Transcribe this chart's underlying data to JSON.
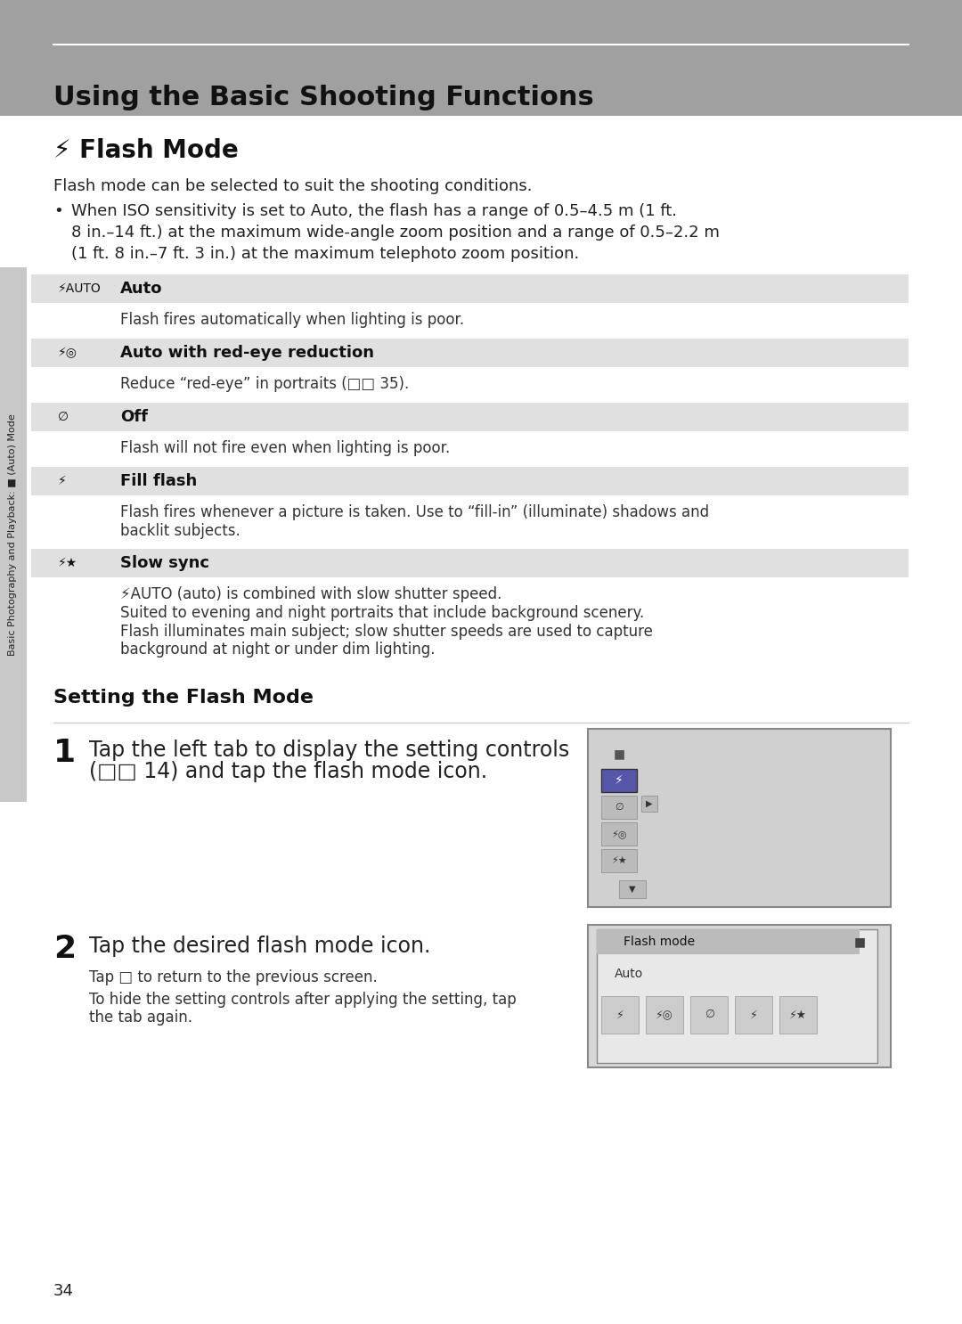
{
  "page_bg": "#ffffff",
  "header_bg": "#a0a0a0",
  "header_text": "Using the Basic Shooting Functions",
  "header_line_color": "#ffffff",
  "section_title": "⚡ Flash Mode",
  "intro_text": "Flash mode can be selected to suit the shooting conditions.",
  "bullet_text": "When ISO sensitivity is set to Auto, the flash has a range of 0.5–4.5 m (1 ft.\n8 in.–14 ft.) at the maximum wide-angle zoom position and a range of 0.5–2.2 m\n(1 ft. 8 in.–7 ft. 3 in.) at the maximum telephoto zoom position.",
  "table_bg_header": "#e0e0e0",
  "table_bg_body": "#ffffff",
  "table_rows": [
    {
      "icon": "⚡AUTO",
      "label": "Auto",
      "description": "Flash fires automatically when lighting is poor."
    },
    {
      "icon": "⚡◎",
      "label": "Auto with red-eye reduction",
      "description": "Reduce “red-eye” in portraits (□□ 35)."
    },
    {
      "icon": "∅",
      "label": "Off",
      "description": "Flash will not fire even when lighting is poor."
    },
    {
      "icon": "⚡",
      "label": "Fill flash",
      "description": "Flash fires whenever a picture is taken. Use to “fill-in” (illuminate) shadows and\nbacklit subjects."
    },
    {
      "icon": "⚡★",
      "label": "Slow sync",
      "description": "⚡AUTO (auto) is combined with slow shutter speed.\nSuited to evening and night portraits that include background scenery.\nFlash illuminates main subject; slow shutter speeds are used to capture\nbackground at night or under dim lighting."
    }
  ],
  "setting_section_title": "Setting the Flash Mode",
  "step1_num": "1",
  "step1_text": "Tap the left tab to display the setting controls\n(□□ 14) and tap the flash mode icon.",
  "step2_num": "2",
  "step2_text": "Tap the desired flash mode icon.",
  "step2_sub1": "Tap □ to return to the previous screen.",
  "step2_sub2": "To hide the setting controls after applying the setting, tap\nthe tab again.",
  "sidebar_text": "Basic Photography and Playback: ■ (Auto) Mode",
  "page_number": "34",
  "sidebar_bg": "#c8c8c8"
}
